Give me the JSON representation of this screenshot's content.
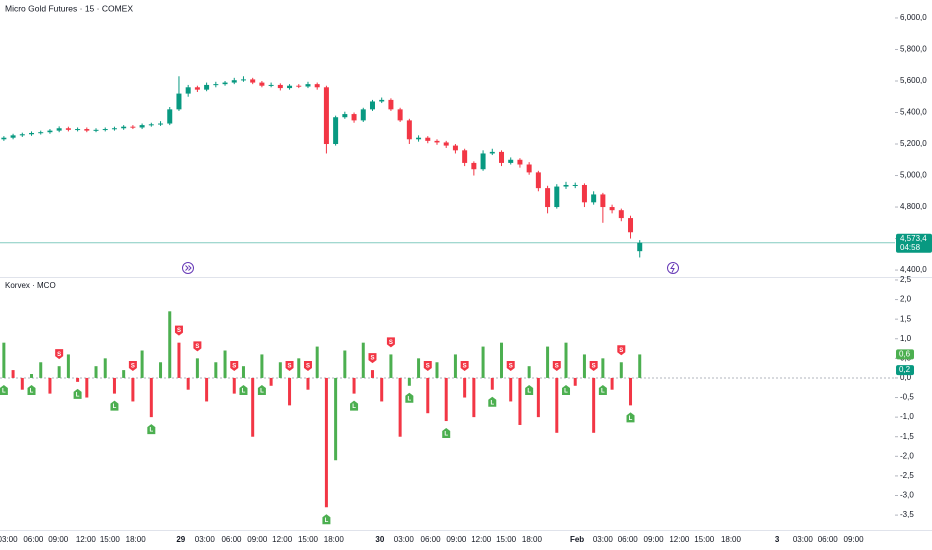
{
  "chart_data": {
    "type": "candlestick",
    "title": "Micro Gold Futures · 15 · COMEX",
    "up_color": "#089981",
    "down_color": "#f23645",
    "ylim": [
      4356,
      6114
    ],
    "yticks": [
      {
        "value": 6000,
        "label": "6,000,0"
      },
      {
        "value": 5800,
        "label": "5,800,0"
      },
      {
        "value": 5600,
        "label": "5,600,0"
      },
      {
        "value": 5400,
        "label": "5,400,0"
      },
      {
        "value": 5200,
        "label": "5,200,0"
      },
      {
        "value": 5000,
        "label": "5,000,0"
      },
      {
        "value": 4800,
        "label": "4,800,0"
      },
      {
        "value": 4600,
        "label": "4,600,0"
      },
      {
        "value": 4400,
        "label": "4,400,0"
      }
    ],
    "xlim": [
      -0.42,
      96.7
    ],
    "xticks": [
      {
        "value": 0.4,
        "label": "03:00"
      },
      {
        "value": 3.2,
        "label": "06:00"
      },
      {
        "value": 5.9,
        "label": "09:00"
      },
      {
        "value": 8.9,
        "label": "12:00"
      },
      {
        "value": 11.5,
        "label": "15:00"
      },
      {
        "value": 14.3,
        "label": "18:00"
      },
      {
        "value": 19.2,
        "label": "29"
      },
      {
        "value": 21.8,
        "label": "03:00"
      },
      {
        "value": 24.7,
        "label": "06:00"
      },
      {
        "value": 27.5,
        "label": "09:00"
      },
      {
        "value": 30.2,
        "label": "12:00"
      },
      {
        "value": 33,
        "label": "15:00"
      },
      {
        "value": 35.8,
        "label": "18:00"
      },
      {
        "value": 40.8,
        "label": "30"
      },
      {
        "value": 43.4,
        "label": "03:00"
      },
      {
        "value": 46.3,
        "label": "06:00"
      },
      {
        "value": 49.1,
        "label": "09:00"
      },
      {
        "value": 51.8,
        "label": "12:00"
      },
      {
        "value": 54.5,
        "label": "15:00"
      },
      {
        "value": 57.3,
        "label": "18:00"
      },
      {
        "value": 62.2,
        "label": "Feb"
      },
      {
        "value": 65,
        "label": "03:00"
      },
      {
        "value": 67.7,
        "label": "06:00"
      },
      {
        "value": 70.5,
        "label": "09:00"
      },
      {
        "value": 73.3,
        "label": "12:00"
      },
      {
        "value": 76,
        "label": "15:00"
      },
      {
        "value": 78.9,
        "label": "18:00"
      },
      {
        "value": 83.9,
        "label": "3"
      },
      {
        "value": 86.7,
        "label": "03:00"
      },
      {
        "value": 89.4,
        "label": "06:00"
      },
      {
        "value": 92.2,
        "label": "09:00"
      }
    ],
    "candles": [
      [
        5230,
        5250,
        5220,
        5240
      ],
      [
        5240,
        5265,
        5230,
        5255
      ],
      [
        5255,
        5272,
        5245,
        5262
      ],
      [
        5262,
        5280,
        5252,
        5270
      ],
      [
        5270,
        5285,
        5260,
        5275
      ],
      [
        5275,
        5295,
        5265,
        5285
      ],
      [
        5285,
        5312,
        5275,
        5300
      ],
      [
        5300,
        5310,
        5280,
        5290
      ],
      [
        5290,
        5305,
        5280,
        5295
      ],
      [
        5295,
        5305,
        5275,
        5285
      ],
      [
        5285,
        5300,
        5275,
        5290
      ],
      [
        5290,
        5305,
        5280,
        5295
      ],
      [
        5295,
        5310,
        5285,
        5300
      ],
      [
        5300,
        5320,
        5290,
        5310
      ],
      [
        5310,
        5320,
        5295,
        5305
      ],
      [
        5305,
        5330,
        5295,
        5320
      ],
      [
        5320,
        5335,
        5310,
        5325
      ],
      [
        5325,
        5345,
        5315,
        5330
      ],
      [
        5330,
        5435,
        5320,
        5420
      ],
      [
        5420,
        5630,
        5410,
        5520
      ],
      [
        5520,
        5575,
        5500,
        5560
      ],
      [
        5560,
        5570,
        5530,
        5545
      ],
      [
        5545,
        5590,
        5535,
        5575
      ],
      [
        5575,
        5595,
        5560,
        5580
      ],
      [
        5580,
        5600,
        5570,
        5590
      ],
      [
        5590,
        5620,
        5580,
        5605
      ],
      [
        5605,
        5630,
        5595,
        5610
      ],
      [
        5610,
        5620,
        5580,
        5590
      ],
      [
        5590,
        5600,
        5560,
        5570
      ],
      [
        5570,
        5590,
        5560,
        5575
      ],
      [
        5575,
        5585,
        5540,
        5555
      ],
      [
        5555,
        5580,
        5545,
        5570
      ],
      [
        5570,
        5580,
        5555,
        5565
      ],
      [
        5565,
        5595,
        5555,
        5580
      ],
      [
        5580,
        5590,
        5545,
        5560
      ],
      [
        5560,
        5570,
        5140,
        5200
      ],
      [
        5200,
        5380,
        5190,
        5370
      ],
      [
        5370,
        5405,
        5360,
        5390
      ],
      [
        5390,
        5400,
        5335,
        5350
      ],
      [
        5350,
        5430,
        5340,
        5420
      ],
      [
        5420,
        5480,
        5410,
        5470
      ],
      [
        5470,
        5495,
        5460,
        5480
      ],
      [
        5480,
        5490,
        5410,
        5420
      ],
      [
        5420,
        5430,
        5340,
        5350
      ],
      [
        5350,
        5360,
        5200,
        5230
      ],
      [
        5230,
        5255,
        5215,
        5240
      ],
      [
        5240,
        5250,
        5205,
        5220
      ],
      [
        5220,
        5230,
        5195,
        5210
      ],
      [
        5210,
        5220,
        5175,
        5190
      ],
      [
        5190,
        5200,
        5140,
        5160
      ],
      [
        5160,
        5170,
        5060,
        5080
      ],
      [
        5080,
        5090,
        5000,
        5040
      ],
      [
        5040,
        5160,
        5030,
        5140
      ],
      [
        5140,
        5170,
        5130,
        5150
      ],
      [
        5150,
        5160,
        5060,
        5080
      ],
      [
        5080,
        5115,
        5070,
        5100
      ],
      [
        5100,
        5110,
        5050,
        5070
      ],
      [
        5070,
        5085,
        5005,
        5020
      ],
      [
        5020,
        5030,
        4900,
        4920
      ],
      [
        4920,
        4935,
        4760,
        4800
      ],
      [
        4800,
        4945,
        4790,
        4930
      ],
      [
        4930,
        4960,
        4915,
        4940
      ],
      [
        4940,
        4955,
        4920,
        4940
      ],
      [
        4940,
        4950,
        4800,
        4830
      ],
      [
        4830,
        4900,
        4815,
        4880
      ],
      [
        4880,
        4890,
        4700,
        4800
      ],
      [
        4800,
        4815,
        4760,
        4780
      ],
      [
        4780,
        4790,
        4710,
        4730
      ],
      [
        4730,
        4745,
        4600,
        4640
      ],
      [
        4520,
        4590,
        4480,
        4573
      ]
    ],
    "last_price": {
      "value": 4573.4,
      "label": "4,573,4",
      "countdown": "04:58",
      "color": "#089981"
    },
    "indicator": {
      "type": "bar",
      "title": "Korvex · MCO",
      "up_color": "#4caf50",
      "down_color": "#f23645",
      "ylim": [
        -3.88,
        2.55
      ],
      "yticks": [
        {
          "value": 2.5,
          "label": "2,5"
        },
        {
          "value": 2,
          "label": "2,0"
        },
        {
          "value": 1.5,
          "label": "1,5"
        },
        {
          "value": 1,
          "label": "1,0"
        },
        {
          "value": 0.5,
          "label": "0,5"
        },
        {
          "value": 0,
          "label": "0,0"
        },
        {
          "value": -0.5,
          "label": "-0,5"
        },
        {
          "value": -1,
          "label": "-1,0"
        },
        {
          "value": -1.5,
          "label": "-1,5"
        },
        {
          "value": -2,
          "label": "-2,0"
        },
        {
          "value": -2.5,
          "label": "-2,5"
        },
        {
          "value": -3,
          "label": "-3,0"
        },
        {
          "value": -3.5,
          "label": "-3,5"
        }
      ],
      "values": [
        0.9,
        0.2,
        -0.3,
        0.1,
        0.4,
        -0.4,
        0.3,
        0.6,
        -0.1,
        -0.5,
        0.3,
        0.5,
        -0.4,
        0.2,
        -0.6,
        0.7,
        -1.0,
        0.4,
        1.7,
        0.9,
        -0.3,
        0.5,
        -0.6,
        0.4,
        0.7,
        -0.4,
        0.3,
        -1.5,
        0.6,
        -0.2,
        0.4,
        -0.7,
        0.5,
        -0.3,
        0.8,
        -3.3,
        -2.1,
        0.7,
        -0.4,
        0.9,
        0.2,
        -0.6,
        0.6,
        -1.5,
        -0.2,
        0.5,
        -0.9,
        0.4,
        -1.1,
        0.6,
        -0.5,
        -1.0,
        0.8,
        -0.3,
        0.9,
        -0.6,
        -1.2,
        0.3,
        -1.0,
        0.8,
        -1.4,
        0.9,
        -0.2,
        0.6,
        -1.4,
        0.5,
        -0.3,
        0.4,
        -0.7,
        0.6
      ],
      "signals": [
        {
          "index": 0,
          "text": "L"
        },
        {
          "index": 3,
          "text": "L"
        },
        {
          "index": 6,
          "text": "S"
        },
        {
          "index": 8,
          "text": "L"
        },
        {
          "index": 12,
          "text": "L"
        },
        {
          "index": 14,
          "text": "S"
        },
        {
          "index": 16,
          "text": "L"
        },
        {
          "index": 19,
          "text": "S"
        },
        {
          "index": 21,
          "text": "S"
        },
        {
          "index": 25,
          "text": "S"
        },
        {
          "index": 26,
          "text": "L"
        },
        {
          "index": 28,
          "text": "L"
        },
        {
          "index": 31,
          "text": "S"
        },
        {
          "index": 33,
          "text": "S"
        },
        {
          "index": 35,
          "text": "L"
        },
        {
          "index": 38,
          "text": "L"
        },
        {
          "index": 40,
          "text": "S"
        },
        {
          "index": 42,
          "text": "S"
        },
        {
          "index": 44,
          "text": "L"
        },
        {
          "index": 46,
          "text": "S"
        },
        {
          "index": 48,
          "text": "L"
        },
        {
          "index": 50,
          "text": "S"
        },
        {
          "index": 53,
          "text": "L"
        },
        {
          "index": 55,
          "text": "S"
        },
        {
          "index": 57,
          "text": "L"
        },
        {
          "index": 60,
          "text": "S"
        },
        {
          "index": 61,
          "text": "L"
        },
        {
          "index": 64,
          "text": "S"
        },
        {
          "index": 65,
          "text": "L"
        },
        {
          "index": 67,
          "text": "S"
        },
        {
          "index": 68,
          "text": "L"
        }
      ],
      "tags": [
        {
          "value": 0.6,
          "label": "0,6",
          "color": "#4caf50"
        },
        {
          "value": 0.2,
          "label": "0,2",
          "color": "#089981"
        }
      ]
    }
  }
}
